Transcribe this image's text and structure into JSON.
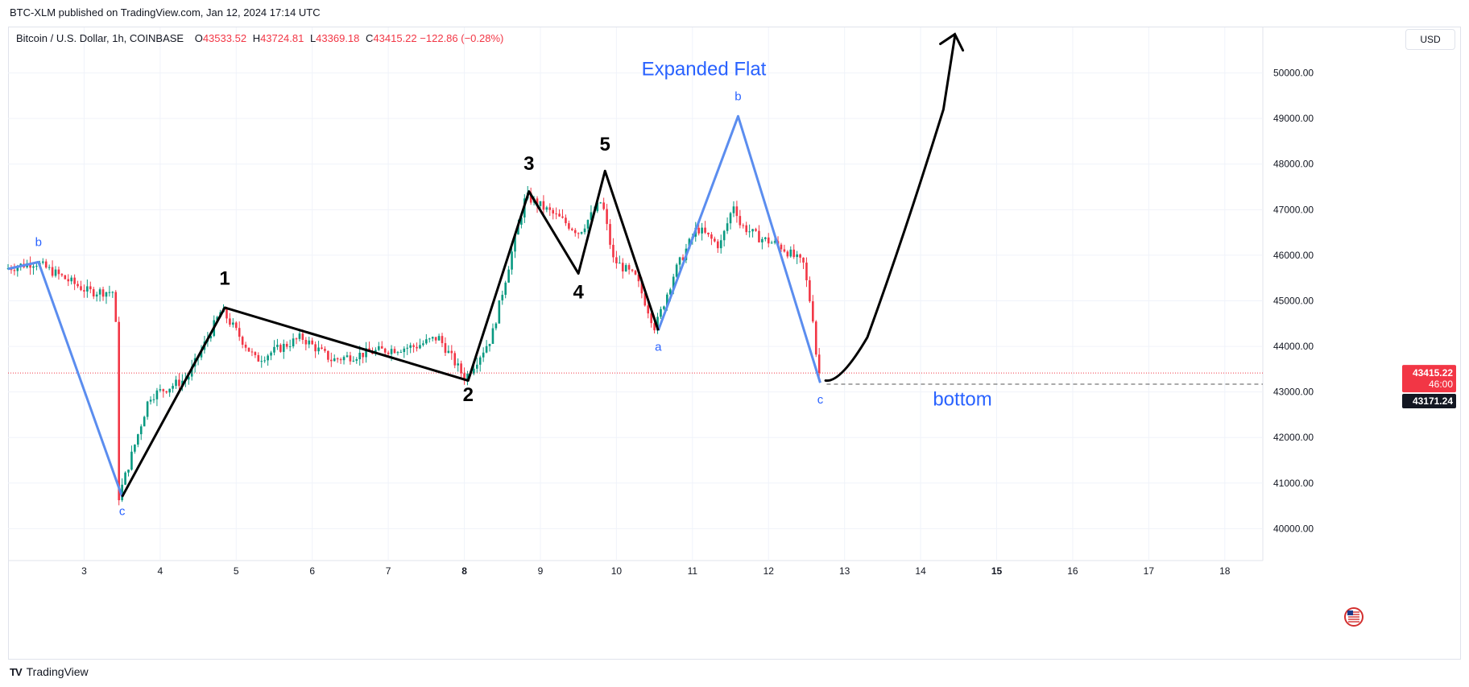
{
  "header": {
    "published": "BTC-XLM published on TradingView.com, Jan 12, 2024 17:14 UTC"
  },
  "legend": {
    "symbol": "Bitcoin / U.S. Dollar, 1h, COINBASE",
    "o_label": "O",
    "o": "43533.52",
    "h_label": "H",
    "h": "43724.81",
    "l_label": "L",
    "l": "43369.18",
    "c_label": "C",
    "c": "43415.22",
    "change": "−122.86 (−0.28%)"
  },
  "currency_button": "USD",
  "footer": {
    "brand": "TradingView",
    "logo": "TV"
  },
  "icons": {
    "flag": "us-flag-icon"
  },
  "colors": {
    "up": "#089981",
    "down": "#f23645",
    "wave_blue": "#5b8def",
    "wave_black": "#000000",
    "annotation_blue": "#2962ff"
  },
  "chart_data": {
    "type": "candlestick",
    "ylim": [
      39300,
      51000
    ],
    "y_ticks": [
      {
        "value": 40000,
        "label": "40000.00"
      },
      {
        "value": 41000,
        "label": "41000.00"
      },
      {
        "value": 42000,
        "label": "42000.00"
      },
      {
        "value": 43000,
        "label": "43000.00"
      },
      {
        "value": 44000,
        "label": "44000.00"
      },
      {
        "value": 45000,
        "label": "45000.00"
      },
      {
        "value": 46000,
        "label": "46000.00"
      },
      {
        "value": 47000,
        "label": "47000.00"
      },
      {
        "value": 48000,
        "label": "48000.00"
      },
      {
        "value": 49000,
        "label": "49000.00"
      },
      {
        "value": 50000,
        "label": "50000.00"
      }
    ],
    "x_range": [
      2.0,
      18.5
    ],
    "x_ticks": [
      {
        "value": 3,
        "label": "3",
        "bold": false
      },
      {
        "value": 4,
        "label": "4",
        "bold": false
      },
      {
        "value": 5,
        "label": "5",
        "bold": false
      },
      {
        "value": 6,
        "label": "6",
        "bold": false
      },
      {
        "value": 7,
        "label": "7",
        "bold": false
      },
      {
        "value": 8,
        "label": "8",
        "bold": true
      },
      {
        "value": 9,
        "label": "9",
        "bold": false
      },
      {
        "value": 10,
        "label": "10",
        "bold": false
      },
      {
        "value": 11,
        "label": "11",
        "bold": false
      },
      {
        "value": 12,
        "label": "12",
        "bold": false
      },
      {
        "value": 13,
        "label": "13",
        "bold": false
      },
      {
        "value": 14,
        "label": "14",
        "bold": false
      },
      {
        "value": 15,
        "label": "15",
        "bold": true
      },
      {
        "value": 16,
        "label": "16",
        "bold": false
      },
      {
        "value": 17,
        "label": "17",
        "bold": false
      },
      {
        "value": 18,
        "label": "18",
        "bold": false
      }
    ],
    "price_anchors": [
      [
        2.0,
        45700
      ],
      [
        2.4,
        45850
      ],
      [
        3.1,
        45200
      ],
      [
        3.45,
        45200
      ],
      [
        3.5,
        40700
      ],
      [
        3.9,
        42900
      ],
      [
        4.4,
        43300
      ],
      [
        4.85,
        44800
      ],
      [
        5.3,
        43700
      ],
      [
        5.9,
        44200
      ],
      [
        6.3,
        43700
      ],
      [
        6.9,
        43900
      ],
      [
        7.4,
        44000
      ],
      [
        7.7,
        44200
      ],
      [
        8.05,
        43300
      ],
      [
        8.4,
        44200
      ],
      [
        8.7,
        46300
      ],
      [
        8.85,
        47300
      ],
      [
        9.3,
        46800
      ],
      [
        9.55,
        46500
      ],
      [
        9.85,
        47200
      ],
      [
        10.0,
        45900
      ],
      [
        10.3,
        45500
      ],
      [
        10.55,
        44400
      ],
      [
        10.8,
        45600
      ],
      [
        11.1,
        46600
      ],
      [
        11.4,
        46200
      ],
      [
        11.6,
        47200
      ],
      [
        11.65,
        46700
      ],
      [
        11.9,
        46400
      ],
      [
        12.2,
        46200
      ],
      [
        12.5,
        45800
      ],
      [
        12.65,
        44400
      ],
      [
        12.68,
        43415.22
      ]
    ],
    "last_price": {
      "value": 43415.22,
      "label": "43415.22",
      "countdown": "46:00"
    },
    "marker_price": {
      "value": 43171.24,
      "label": "43171.24"
    },
    "blue_waves": [
      {
        "points": [
          [
            2.0,
            45700
          ],
          [
            2.4,
            45850
          ],
          [
            3.5,
            40700
          ]
        ]
      },
      {
        "points": [
          [
            10.55,
            44350
          ],
          [
            11.6,
            49050
          ],
          [
            12.68,
            43200
          ]
        ]
      }
    ],
    "black_waves": [
      {
        "points": [
          [
            3.5,
            40700
          ],
          [
            4.85,
            44850
          ],
          [
            8.05,
            43250
          ],
          [
            8.85,
            47400
          ],
          [
            9.5,
            45600
          ],
          [
            9.85,
            47850
          ],
          [
            10.55,
            44350
          ]
        ]
      }
    ],
    "wave_labels": [
      {
        "text": "b",
        "x": 2.4,
        "y": 46200,
        "color": "blue",
        "size": "small"
      },
      {
        "text": "c",
        "x": 3.5,
        "y": 40300,
        "color": "blue",
        "size": "small"
      },
      {
        "text": "1",
        "x": 4.85,
        "y": 45350,
        "color": "black",
        "size": "large"
      },
      {
        "text": "2",
        "x": 8.05,
        "y": 42800,
        "color": "black",
        "size": "large"
      },
      {
        "text": "3",
        "x": 8.85,
        "y": 47870,
        "color": "black",
        "size": "large"
      },
      {
        "text": "4",
        "x": 9.5,
        "y": 45050,
        "color": "black",
        "size": "large"
      },
      {
        "text": "5",
        "x": 9.85,
        "y": 48300,
        "color": "black",
        "size": "large"
      },
      {
        "text": "a",
        "x": 10.55,
        "y": 43900,
        "color": "blue",
        "size": "small"
      },
      {
        "text": "b",
        "x": 11.6,
        "y": 49400,
        "color": "blue",
        "size": "small"
      },
      {
        "text": "c",
        "x": 12.68,
        "y": 42750,
        "color": "blue",
        "size": "small"
      }
    ],
    "annotations": [
      {
        "text": "Expanded Flat",
        "x": 11.15,
        "y": 49950
      },
      {
        "text": "bottom",
        "x": 14.55,
        "y": 42700
      }
    ],
    "projection": {
      "path": [
        [
          12.75,
          43250
        ],
        [
          12.95,
          43200
        ],
        [
          13.3,
          44200
        ],
        [
          13.8,
          46500
        ],
        [
          14.3,
          49200
        ],
        [
          14.45,
          50800
        ]
      ],
      "arrow_tip": [
        14.45,
        50850
      ]
    },
    "support_line": {
      "x_start": 12.68,
      "value": 43171.24
    }
  }
}
